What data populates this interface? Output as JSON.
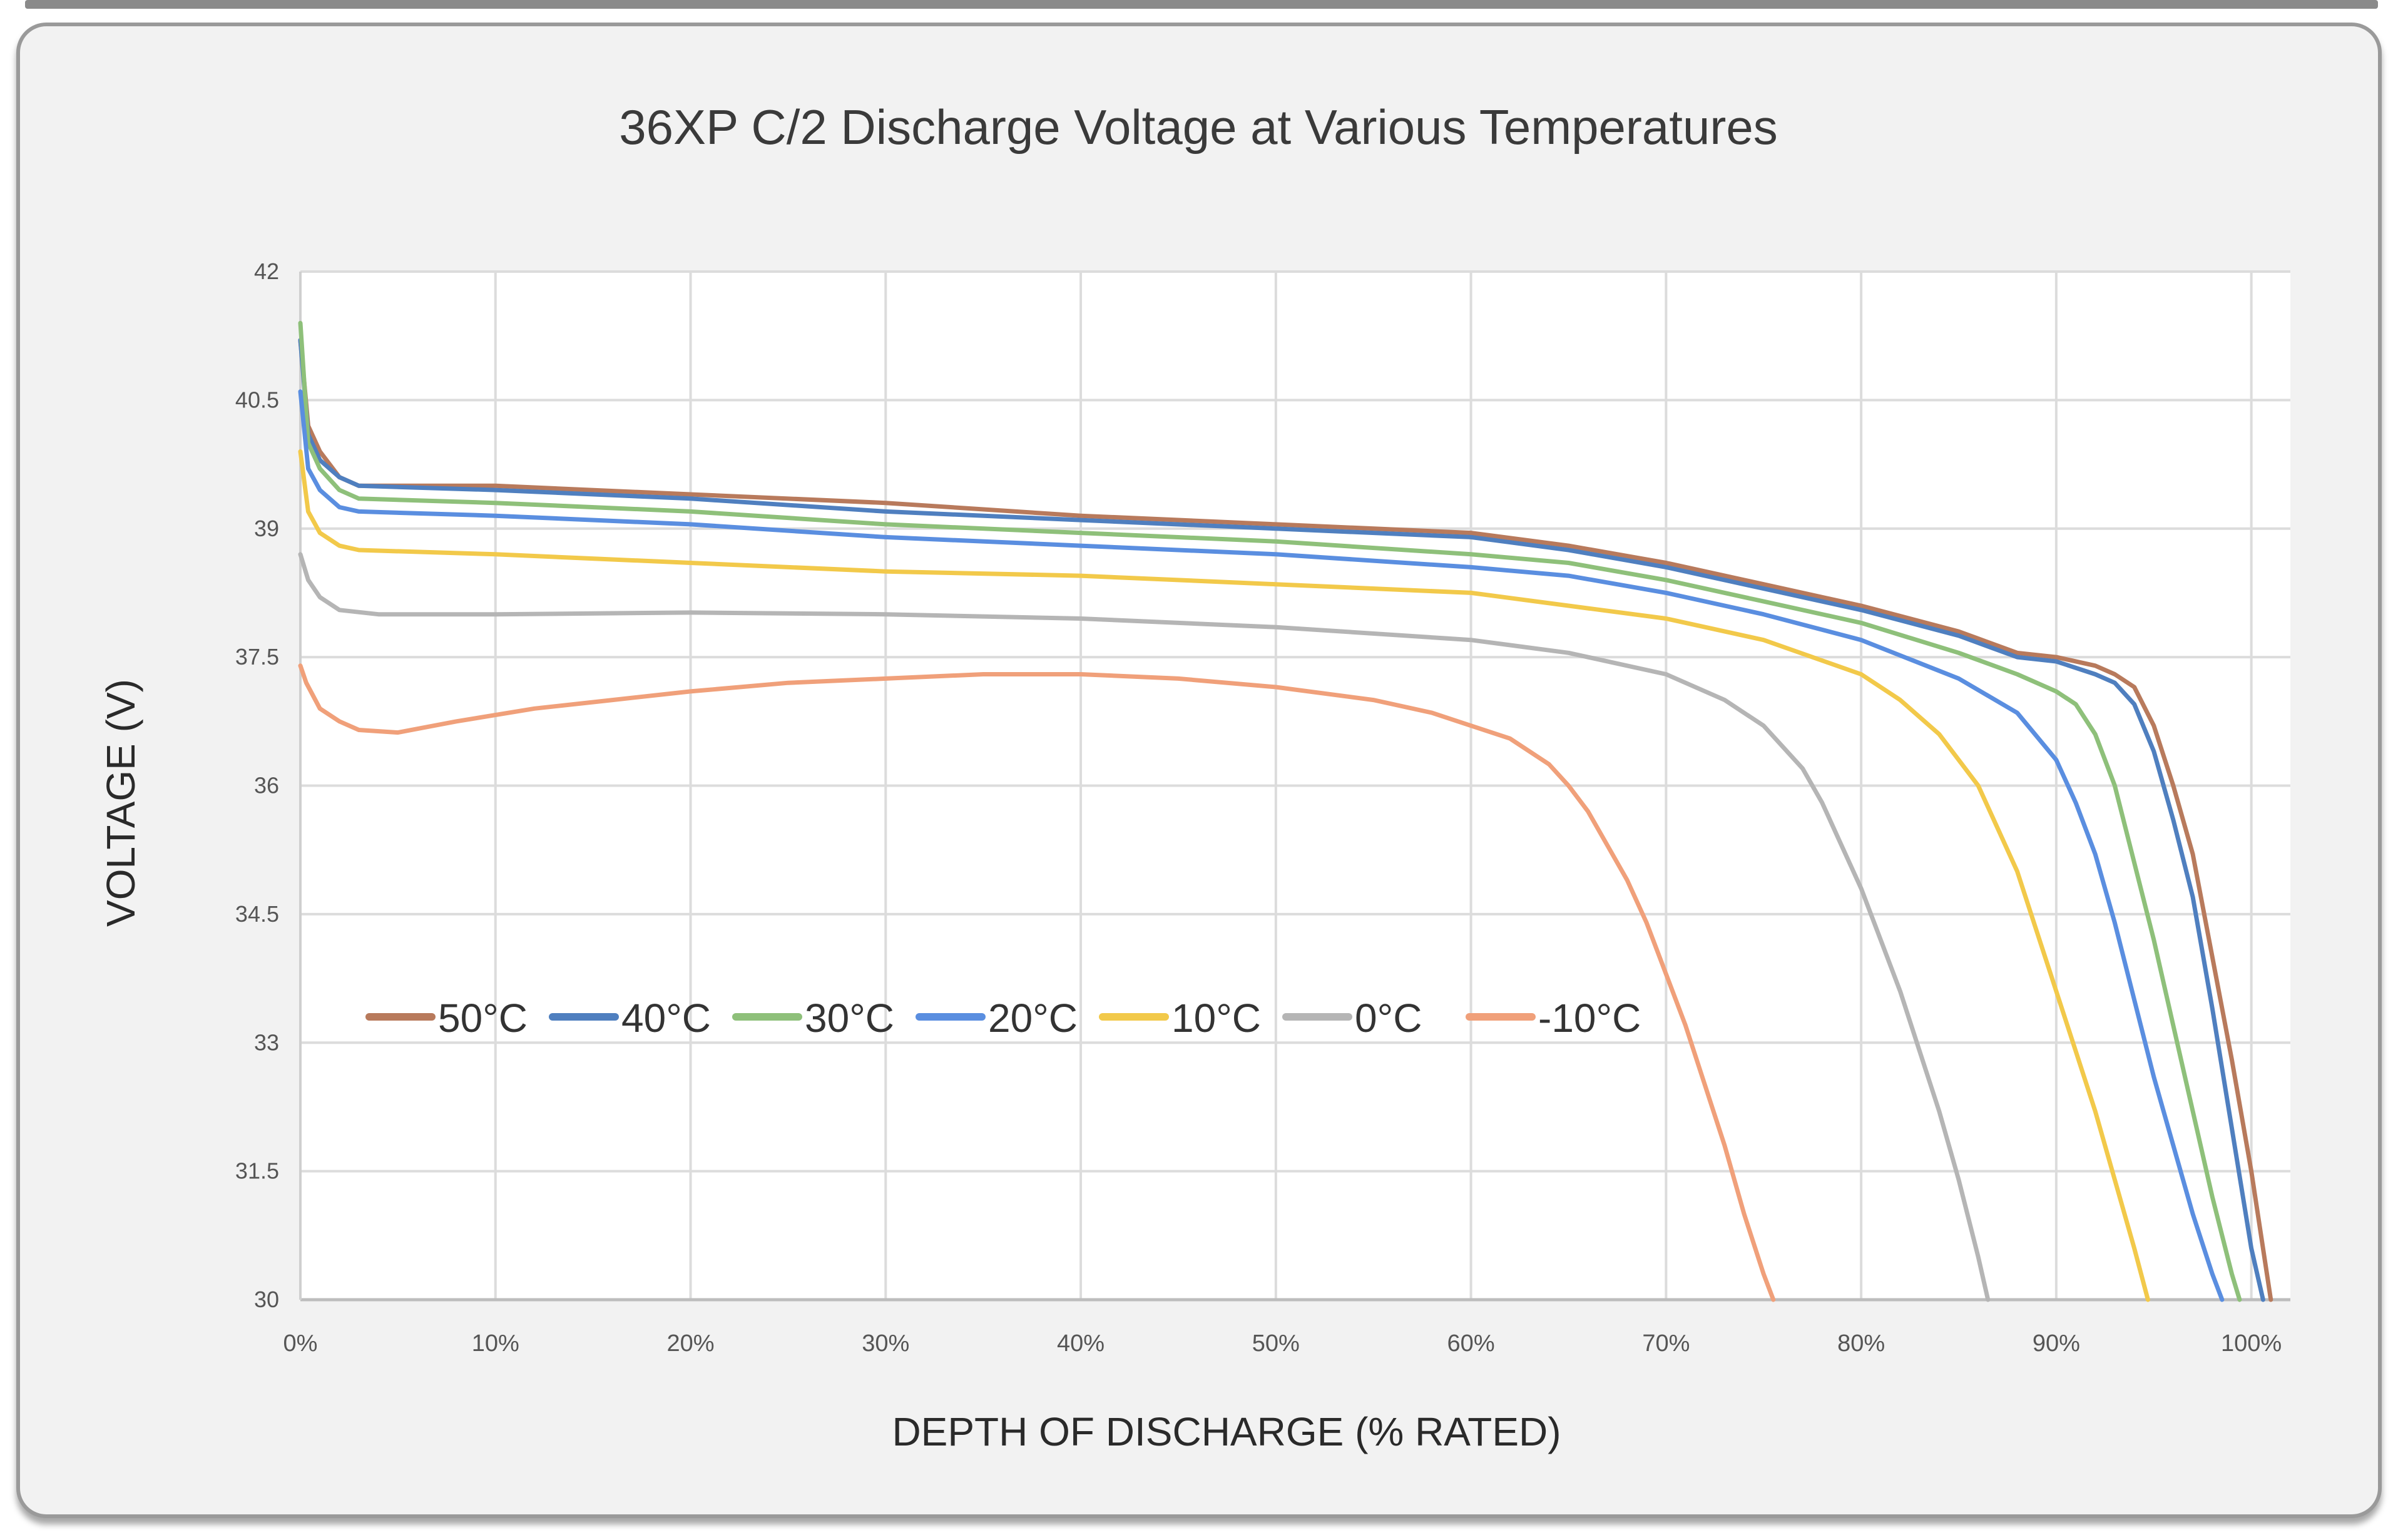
{
  "chart_data": {
    "type": "line",
    "title": "36XP C/2 Discharge Voltage at Various Temperatures",
    "xlabel": "DEPTH OF DISCHARGE (% RATED)",
    "ylabel": "VOLTAGE (V)",
    "xlim": [
      0,
      102
    ],
    "ylim": [
      30,
      42
    ],
    "x_ticks": [
      0,
      10,
      20,
      30,
      40,
      50,
      60,
      70,
      80,
      90,
      100
    ],
    "x_tick_labels": [
      "0%",
      "10%",
      "20%",
      "30%",
      "40%",
      "50%",
      "60%",
      "70%",
      "80%",
      "90%",
      "100%"
    ],
    "y_ticks": [
      30,
      31.5,
      33,
      34.5,
      36,
      37.5,
      39,
      40.5,
      42
    ],
    "y_tick_labels": [
      "30",
      "31.5",
      "33",
      "34.5",
      "36",
      "37.5",
      "39",
      "40.5",
      "42"
    ],
    "grid": true,
    "legend_position": "lower-left",
    "series": [
      {
        "name": "50°C",
        "color": "#b87a5c",
        "points": [
          [
            0,
            41.2
          ],
          [
            0.4,
            40.2
          ],
          [
            1,
            39.9
          ],
          [
            2,
            39.6
          ],
          [
            3,
            39.5
          ],
          [
            10,
            39.5
          ],
          [
            20,
            39.4
          ],
          [
            30,
            39.3
          ],
          [
            40,
            39.15
          ],
          [
            50,
            39.05
          ],
          [
            60,
            38.95
          ],
          [
            65,
            38.8
          ],
          [
            70,
            38.6
          ],
          [
            75,
            38.35
          ],
          [
            80,
            38.1
          ],
          [
            85,
            37.8
          ],
          [
            88,
            37.55
          ],
          [
            90,
            37.5
          ],
          [
            92,
            37.4
          ],
          [
            93,
            37.3
          ],
          [
            94,
            37.15
          ],
          [
            95,
            36.7
          ],
          [
            96,
            36.0
          ],
          [
            97,
            35.2
          ],
          [
            98,
            34.0
          ],
          [
            99,
            32.8
          ],
          [
            100,
            31.5
          ],
          [
            101,
            30.0
          ]
        ]
      },
      {
        "name": "40°C",
        "color": "#4f7fbf",
        "points": [
          [
            0,
            41.2
          ],
          [
            0.4,
            40.1
          ],
          [
            1,
            39.8
          ],
          [
            2,
            39.6
          ],
          [
            3,
            39.5
          ],
          [
            10,
            39.45
          ],
          [
            20,
            39.35
          ],
          [
            30,
            39.2
          ],
          [
            40,
            39.1
          ],
          [
            50,
            39.0
          ],
          [
            60,
            38.9
          ],
          [
            65,
            38.75
          ],
          [
            70,
            38.55
          ],
          [
            75,
            38.3
          ],
          [
            80,
            38.05
          ],
          [
            85,
            37.75
          ],
          [
            88,
            37.5
          ],
          [
            90,
            37.45
          ],
          [
            92,
            37.3
          ],
          [
            93,
            37.2
          ],
          [
            94,
            36.95
          ],
          [
            95,
            36.4
          ],
          [
            96,
            35.6
          ],
          [
            97,
            34.7
          ],
          [
            98,
            33.4
          ],
          [
            99,
            32.0
          ],
          [
            100,
            30.6
          ],
          [
            100.6,
            30.0
          ]
        ]
      },
      {
        "name": "30°C",
        "color": "#8ec07a",
        "points": [
          [
            0,
            41.4
          ],
          [
            0.4,
            40.0
          ],
          [
            1,
            39.7
          ],
          [
            2,
            39.45
          ],
          [
            3,
            39.35
          ],
          [
            10,
            39.3
          ],
          [
            20,
            39.2
          ],
          [
            30,
            39.05
          ],
          [
            40,
            38.95
          ],
          [
            50,
            38.85
          ],
          [
            60,
            38.7
          ],
          [
            65,
            38.6
          ],
          [
            70,
            38.4
          ],
          [
            75,
            38.15
          ],
          [
            80,
            37.9
          ],
          [
            85,
            37.55
          ],
          [
            88,
            37.3
          ],
          [
            90,
            37.1
          ],
          [
            91,
            36.95
          ],
          [
            92,
            36.6
          ],
          [
            93,
            36.0
          ],
          [
            94,
            35.1
          ],
          [
            95,
            34.2
          ],
          [
            96,
            33.2
          ],
          [
            97,
            32.2
          ],
          [
            98,
            31.2
          ],
          [
            99,
            30.3
          ],
          [
            99.4,
            30.0
          ]
        ]
      },
      {
        "name": "20°C",
        "color": "#5a8ee0",
        "points": [
          [
            0,
            40.6
          ],
          [
            0.4,
            39.7
          ],
          [
            1,
            39.45
          ],
          [
            2,
            39.25
          ],
          [
            3,
            39.2
          ],
          [
            10,
            39.15
          ],
          [
            20,
            39.05
          ],
          [
            30,
            38.9
          ],
          [
            40,
            38.8
          ],
          [
            50,
            38.7
          ],
          [
            60,
            38.55
          ],
          [
            65,
            38.45
          ],
          [
            70,
            38.25
          ],
          [
            75,
            38.0
          ],
          [
            80,
            37.7
          ],
          [
            85,
            37.25
          ],
          [
            88,
            36.85
          ],
          [
            90,
            36.3
          ],
          [
            91,
            35.8
          ],
          [
            92,
            35.2
          ],
          [
            93,
            34.4
          ],
          [
            94,
            33.5
          ],
          [
            95,
            32.6
          ],
          [
            96,
            31.8
          ],
          [
            97,
            31.0
          ],
          [
            98,
            30.3
          ],
          [
            98.5,
            30.0
          ]
        ]
      },
      {
        "name": "10°C",
        "color": "#f2c94a",
        "points": [
          [
            0,
            39.9
          ],
          [
            0.4,
            39.2
          ],
          [
            1,
            38.95
          ],
          [
            2,
            38.8
          ],
          [
            3,
            38.75
          ],
          [
            10,
            38.7
          ],
          [
            20,
            38.6
          ],
          [
            30,
            38.5
          ],
          [
            40,
            38.45
          ],
          [
            50,
            38.35
          ],
          [
            60,
            38.25
          ],
          [
            65,
            38.1
          ],
          [
            70,
            37.95
          ],
          [
            75,
            37.7
          ],
          [
            80,
            37.3
          ],
          [
            82,
            37.0
          ],
          [
            84,
            36.6
          ],
          [
            86,
            36.0
          ],
          [
            87,
            35.5
          ],
          [
            88,
            35.0
          ],
          [
            89,
            34.3
          ],
          [
            90,
            33.6
          ],
          [
            91,
            32.9
          ],
          [
            92,
            32.2
          ],
          [
            93,
            31.4
          ],
          [
            94,
            30.6
          ],
          [
            94.7,
            30.0
          ]
        ]
      },
      {
        "name": "0°C",
        "color": "#b5b5b5",
        "points": [
          [
            0,
            38.7
          ],
          [
            0.4,
            38.4
          ],
          [
            1,
            38.2
          ],
          [
            2,
            38.05
          ],
          [
            4,
            38.0
          ],
          [
            10,
            38.0
          ],
          [
            20,
            38.02
          ],
          [
            30,
            38.0
          ],
          [
            40,
            37.95
          ],
          [
            50,
            37.85
          ],
          [
            60,
            37.7
          ],
          [
            65,
            37.55
          ],
          [
            68,
            37.4
          ],
          [
            70,
            37.3
          ],
          [
            73,
            37.0
          ],
          [
            75,
            36.7
          ],
          [
            77,
            36.2
          ],
          [
            78,
            35.8
          ],
          [
            79,
            35.3
          ],
          [
            80,
            34.8
          ],
          [
            81,
            34.2
          ],
          [
            82,
            33.6
          ],
          [
            83,
            32.9
          ],
          [
            84,
            32.2
          ],
          [
            85,
            31.4
          ],
          [
            86,
            30.5
          ],
          [
            86.5,
            30.0
          ]
        ]
      },
      {
        "name": "-10°C",
        "color": "#f0a07a",
        "points": [
          [
            0,
            37.4
          ],
          [
            0.3,
            37.2
          ],
          [
            1,
            36.9
          ],
          [
            2,
            36.75
          ],
          [
            3,
            36.65
          ],
          [
            5,
            36.62
          ],
          [
            8,
            36.75
          ],
          [
            12,
            36.9
          ],
          [
            16,
            37.0
          ],
          [
            20,
            37.1
          ],
          [
            25,
            37.2
          ],
          [
            30,
            37.25
          ],
          [
            35,
            37.3
          ],
          [
            40,
            37.3
          ],
          [
            45,
            37.25
          ],
          [
            50,
            37.15
          ],
          [
            55,
            37.0
          ],
          [
            58,
            36.85
          ],
          [
            60,
            36.7
          ],
          [
            62,
            36.55
          ],
          [
            64,
            36.25
          ],
          [
            65,
            36.0
          ],
          [
            66,
            35.7
          ],
          [
            67,
            35.3
          ],
          [
            68,
            34.9
          ],
          [
            69,
            34.4
          ],
          [
            70,
            33.8
          ],
          [
            71,
            33.2
          ],
          [
            72,
            32.5
          ],
          [
            73,
            31.8
          ],
          [
            74,
            31.0
          ],
          [
            75,
            30.3
          ],
          [
            75.5,
            30.0
          ]
        ]
      }
    ]
  }
}
